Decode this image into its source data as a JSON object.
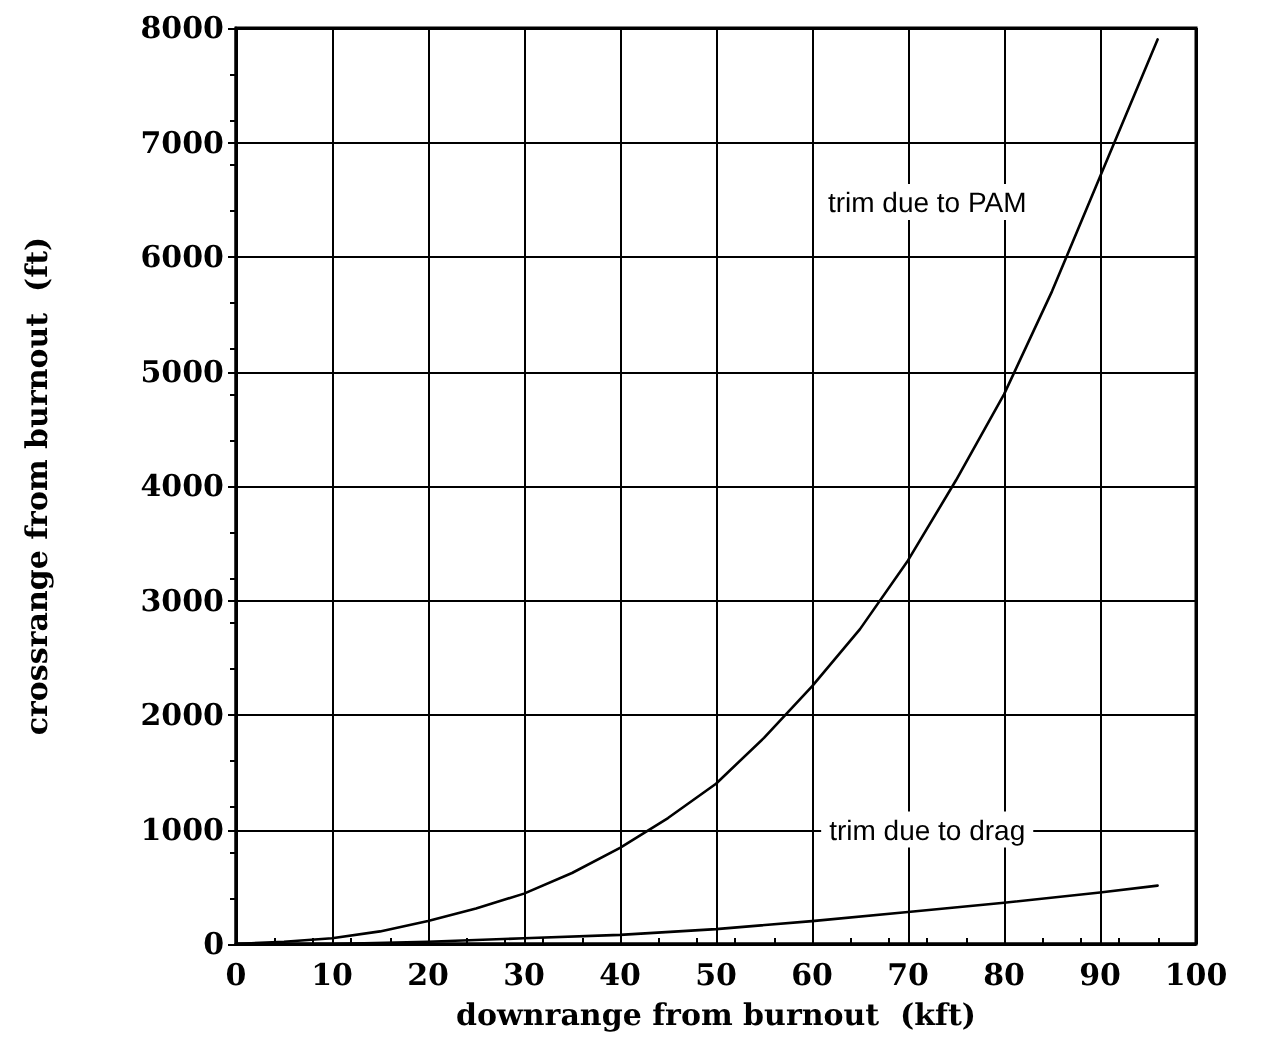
{
  "chart_data": {
    "type": "line",
    "xlabel": "downrange from burnout  (kft)",
    "ylabel": "crossrange from burnout  (ft)",
    "series": [
      {
        "color": "#000000",
        "x": [
          0,
          5,
          10,
          15,
          20,
          25,
          30,
          35,
          40,
          45,
          50,
          55,
          60,
          65,
          70,
          75,
          80,
          85,
          90,
          96
        ],
        "values": [
          0,
          20,
          50,
          110,
          200,
          310,
          440,
          620,
          840,
          1100,
          1400,
          1800,
          2250,
          2750,
          3350,
          4050,
          4800,
          5700,
          6700,
          7900
        ]
      },
      {
        "color": "#000000",
        "x": [
          0,
          10,
          20,
          30,
          40,
          50,
          60,
          70,
          80,
          90,
          96
        ],
        "values": [
          0,
          0,
          20,
          50,
          80,
          130,
          200,
          280,
          360,
          450,
          510
        ]
      }
    ],
    "annotations": [
      "trim due to PAM",
      "trim due to drag"
    ],
    "xlim": [
      0,
      100
    ],
    "xticks": [
      0,
      10,
      20,
      30,
      40,
      50,
      60,
      70,
      80,
      90,
      100
    ],
    "ylim": [
      0,
      8000
    ],
    "yticks": [
      0,
      1000,
      2000,
      3000,
      4000,
      5000,
      6000,
      7000,
      8000
    ],
    "grid": true,
    "marker": "none",
    "line_style": "solid"
  }
}
